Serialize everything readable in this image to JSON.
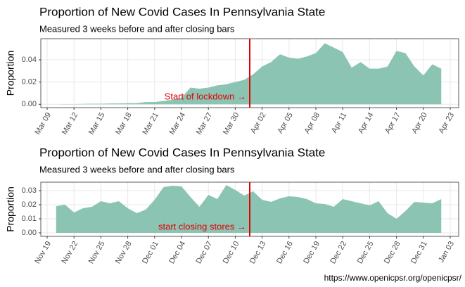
{
  "chart_data": [
    {
      "type": "area",
      "title": "Proportion of New Covid Cases In Pennsylvania State",
      "subtitle": "Measured 3 weeks before and after closing bars",
      "y_label": "Proportion",
      "annotation": "Start of lockdown →",
      "color": "#8cc4b4",
      "categories": [
        "Mar 09",
        null,
        null,
        "Mar 12",
        null,
        null,
        "Mar 15",
        null,
        null,
        "Mar 18",
        null,
        null,
        "Mar 21",
        null,
        null,
        "Mar 24",
        null,
        null,
        "Mar 27",
        null,
        null,
        "Mar 30",
        null,
        null,
        "Apr 02",
        null,
        null,
        "Apr 05",
        null,
        null,
        "Apr 08",
        null,
        null,
        "Apr 11",
        null,
        null,
        "Apr 14",
        null,
        null,
        "Apr 17",
        null,
        null,
        "Apr 20",
        null,
        null,
        "Apr 23"
      ],
      "values": [
        0,
        0,
        0.0002,
        0.0002,
        0.0003,
        0.0005,
        0.0005,
        0.0007,
        0.0008,
        0.001,
        0.001,
        0.002,
        0.002,
        0.003,
        0.004,
        0.006,
        0.015,
        0.014,
        0.015,
        0.017,
        0.018,
        0.02,
        0.022,
        0.027,
        0.034,
        0.038,
        0.045,
        0.042,
        0.041,
        0.043,
        0.046,
        0.055,
        0.051,
        0.047,
        0.033,
        0.038,
        0.032,
        0.032,
        0.034,
        0.048,
        0.046,
        0.034,
        0.026,
        0.036,
        0.032,
        null
      ],
      "ylim": [
        -0.003,
        0.059
      ],
      "yticks": [
        {
          "value": 0,
          "label": "0.00"
        },
        {
          "value": 0.02,
          "label": "0.02"
        },
        {
          "value": 0.04,
          "label": "0.04"
        }
      ],
      "grid": true
    },
    {
      "type": "area",
      "title": "Proportion of New Covid Cases In Pennsylvania State",
      "subtitle": "Measured 3 weeks before and after closing bars",
      "y_label": "Proportion",
      "annotation": "start closing stores →",
      "color": "#8cc4b4",
      "categories": [
        "Nov 19",
        null,
        null,
        "Nov 22",
        null,
        null,
        "Nov 25",
        null,
        null,
        "Nov 28",
        null,
        null,
        "Dec 01",
        null,
        null,
        "Dec 04",
        null,
        null,
        "Dec 07",
        null,
        null,
        "Dec 10",
        null,
        null,
        "Dec 13",
        null,
        null,
        "Dec 16",
        null,
        null,
        "Dec 19",
        null,
        null,
        "Dec 22",
        null,
        null,
        "Dec 25",
        null,
        null,
        "Dec 28",
        null,
        null,
        "Dec 31",
        null,
        null,
        "Jan 03"
      ],
      "values": [
        null,
        0.019,
        0.02,
        0.0145,
        0.0175,
        0.0185,
        0.0225,
        0.021,
        0.0225,
        0.0175,
        0.014,
        0.0165,
        0.0235,
        0.0325,
        0.0335,
        0.033,
        0.0255,
        0.0185,
        0.027,
        0.024,
        0.034,
        0.0305,
        0.0265,
        0.0295,
        0.0235,
        0.022,
        0.0245,
        0.026,
        0.0255,
        0.024,
        0.021,
        0.0205,
        0.0185,
        0.024,
        0.0225,
        0.021,
        0.0195,
        0.0225,
        0.014,
        0.01,
        0.0155,
        0.022,
        0.0215,
        0.021,
        0.024,
        null
      ],
      "ylim": [
        -0.0025,
        0.036
      ],
      "yticks": [
        {
          "value": 0,
          "label": "0.00"
        },
        {
          "value": 0.01,
          "label": "0.01"
        },
        {
          "value": 0.02,
          "label": "0.02"
        },
        {
          "value": 0.03,
          "label": "0.03"
        }
      ],
      "grid": true
    }
  ],
  "footer": "https://www.openicpsr.org/openicpsr/"
}
